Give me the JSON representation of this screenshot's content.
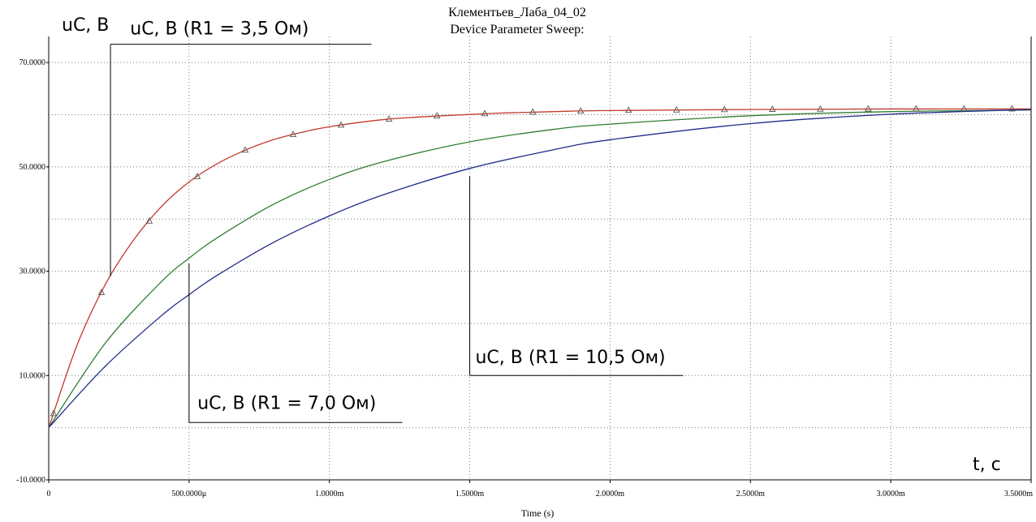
{
  "chart_data": {
    "type": "line",
    "title": "Клементьев_Лаба_04_02",
    "subtitle": "Device Parameter Sweep:",
    "xlabel": "Time (s)",
    "ylabel": "",
    "axis_label_y": "uC, B",
    "axis_label_x": "t, c",
    "xlim": [
      0,
      0.0035
    ],
    "ylim": [
      -10,
      75
    ],
    "x_ticks": [
      {
        "value": 0,
        "label": "0"
      },
      {
        "value": 0.0005,
        "label": "500.0000μ"
      },
      {
        "value": 0.001,
        "label": "1.0000m"
      },
      {
        "value": 0.0015,
        "label": "1.5000m"
      },
      {
        "value": 0.002,
        "label": "2.0000m"
      },
      {
        "value": 0.0025,
        "label": "2.5000m"
      },
      {
        "value": 0.003,
        "label": "3.0000m"
      },
      {
        "value": 0.0035,
        "label": "3.5000m"
      }
    ],
    "y_ticks": [
      {
        "value": 70,
        "label": "70.0000"
      },
      {
        "value": 50,
        "label": "50.0000"
      },
      {
        "value": 30,
        "label": "30.0000"
      },
      {
        "value": 10,
        "label": "10.0000"
      },
      {
        "value": -10,
        "label": "-10.0000"
      }
    ],
    "grid": true,
    "series": [
      {
        "name": "uC, B (R1 = 3,5 Ом)",
        "color": "#c0392b",
        "marker": "triangle",
        "x": [
          0,
          0.0001,
          0.0002,
          0.0003,
          0.0004,
          0.0005,
          0.0006,
          0.0007,
          0.0008,
          0.0009,
          0.001,
          0.0012,
          0.0014,
          0.0016,
          0.0018,
          0.002,
          0.0025,
          0.003,
          0.0035
        ],
        "y": [
          0,
          15.7,
          27.3,
          35.8,
          42.3,
          47.1,
          50.6,
          53.2,
          55.2,
          56.6,
          57.7,
          59.1,
          59.8,
          60.3,
          60.6,
          60.8,
          61.0,
          61.1,
          61.1
        ]
      },
      {
        "name": "uC, B (R1 = 7,0 Ом)",
        "color": "#2e7d32",
        "x": [
          0,
          0.0002,
          0.0004,
          0.0005,
          0.0006,
          0.0008,
          0.001,
          0.0012,
          0.0015,
          0.0018,
          0.002,
          0.0025,
          0.003,
          0.0035
        ],
        "y": [
          0,
          16.1,
          27.9,
          32.5,
          36.4,
          42.8,
          47.6,
          51.1,
          54.8,
          57.2,
          58.2,
          59.8,
          60.6,
          60.9
        ]
      },
      {
        "name": "uC, B (R1 = 10,5 Ом)",
        "color": "#1f2a8a",
        "x": [
          0,
          0.0002,
          0.0004,
          0.0005,
          0.0006,
          0.0008,
          0.001,
          0.0012,
          0.0015,
          0.0018,
          0.002,
          0.0025,
          0.003,
          0.0035
        ],
        "y": [
          0,
          11.7,
          21.4,
          25.5,
          29.2,
          35.5,
          40.6,
          44.8,
          49.7,
          53.3,
          55.2,
          58.3,
          60.1,
          61.0
        ]
      }
    ],
    "annotations": [
      {
        "text": "uC, B (R1 = 3,5 Ом)"
      },
      {
        "text": "uC, B (R1 = 7,0 Ом)"
      },
      {
        "text": "uC, B (R1 = 10,5 Ом)"
      }
    ]
  }
}
